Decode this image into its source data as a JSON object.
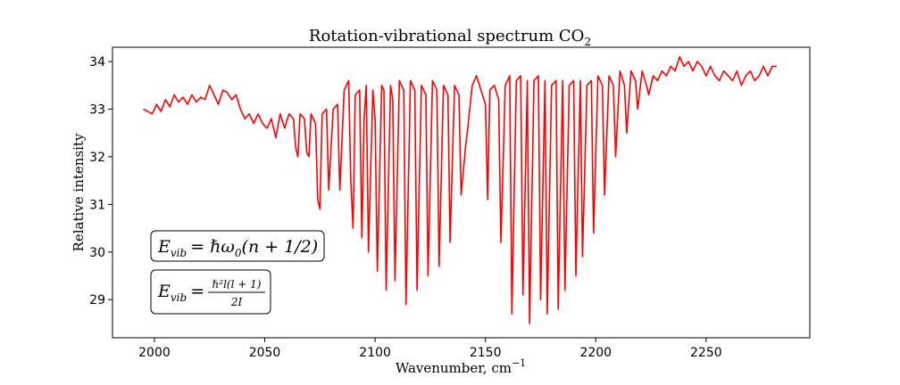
{
  "chart_data": {
    "type": "line",
    "title": "Rotation-vibrational spectrum CO",
    "title_sub": "2",
    "xlabel": "Wavenumber, cm",
    "xlabel_sup": "−1",
    "ylabel": "Relative intensity",
    "xlim": [
      1981,
      2297
    ],
    "ylim": [
      28.2,
      34.3
    ],
    "xticks": [
      2000,
      2050,
      2100,
      2150,
      2200,
      2250
    ],
    "yticks": [
      29,
      30,
      31,
      32,
      33,
      34
    ],
    "grid": false,
    "colors": {
      "line": "#ff0000"
    },
    "series": [
      {
        "points": [
          [
            1995,
            33.0
          ],
          [
            1997,
            32.95
          ],
          [
            1999,
            32.9
          ],
          [
            2001,
            33.1
          ],
          [
            2003,
            32.95
          ],
          [
            2005,
            33.2
          ],
          [
            2007,
            33.05
          ],
          [
            2009,
            33.3
          ],
          [
            2011,
            33.15
          ],
          [
            2013,
            33.25
          ],
          [
            2015,
            33.1
          ],
          [
            2017,
            33.3
          ],
          [
            2019,
            33.15
          ],
          [
            2021,
            33.25
          ],
          [
            2023,
            33.2
          ],
          [
            2025,
            33.5
          ],
          [
            2027,
            33.3
          ],
          [
            2029,
            33.1
          ],
          [
            2031,
            33.4
          ],
          [
            2033,
            33.35
          ],
          [
            2035,
            33.2
          ],
          [
            2037,
            33.3
          ],
          [
            2039,
            33.0
          ],
          [
            2041,
            32.8
          ],
          [
            2043,
            32.9
          ],
          [
            2045,
            32.7
          ],
          [
            2047,
            32.9
          ],
          [
            2049,
            32.7
          ],
          [
            2051,
            32.6
          ],
          [
            2053,
            32.8
          ],
          [
            2055,
            32.4
          ],
          [
            2057,
            32.9
          ],
          [
            2059,
            32.6
          ],
          [
            2061,
            32.9
          ],
          [
            2063,
            32.8
          ],
          [
            2064,
            32.2
          ],
          [
            2065,
            32.0
          ],
          [
            2066,
            32.9
          ],
          [
            2068,
            32.8
          ],
          [
            2069,
            32.1
          ],
          [
            2070,
            32.0
          ],
          [
            2071,
            32.9
          ],
          [
            2073,
            32.7
          ],
          [
            2074,
            31.1
          ],
          [
            2075,
            30.9
          ],
          [
            2076,
            32.9
          ],
          [
            2078,
            33.0
          ],
          [
            2079,
            31.3
          ],
          [
            2081,
            33.0
          ],
          [
            2083,
            33.1
          ],
          [
            2084,
            31.3
          ],
          [
            2086,
            33.4
          ],
          [
            2088,
            33.6
          ],
          [
            2089,
            31.5
          ],
          [
            2090,
            30.5
          ],
          [
            2091,
            33.3
          ],
          [
            2093,
            33.4
          ],
          [
            2094,
            30.3
          ],
          [
            2095,
            32.8
          ],
          [
            2096,
            33.5
          ],
          [
            2097,
            30.0
          ],
          [
            2099,
            33.4
          ],
          [
            2100,
            32.8
          ],
          [
            2101,
            29.6
          ],
          [
            2103,
            33.5
          ],
          [
            2104,
            33.4
          ],
          [
            2105,
            29.2
          ],
          [
            2107,
            33.5
          ],
          [
            2108,
            33.2
          ],
          [
            2109,
            29.4
          ],
          [
            2111,
            33.6
          ],
          [
            2113,
            33.4
          ],
          [
            2114,
            28.9
          ],
          [
            2116,
            33.6
          ],
          [
            2118,
            33.4
          ],
          [
            2119,
            29.2
          ],
          [
            2121,
            33.5
          ],
          [
            2123,
            33.3
          ],
          [
            2124,
            29.5
          ],
          [
            2126,
            33.6
          ],
          [
            2128,
            33.4
          ],
          [
            2129,
            29.7
          ],
          [
            2131,
            33.5
          ],
          [
            2133,
            33.3
          ],
          [
            2134,
            30.2
          ],
          [
            2136,
            33.5
          ],
          [
            2138,
            33.3
          ],
          [
            2139,
            31.2
          ],
          [
            2141,
            32.2
          ],
          [
            2142,
            32.6
          ],
          [
            2144,
            33.5
          ],
          [
            2146,
            33.7
          ],
          [
            2148,
            33.4
          ],
          [
            2150,
            33.1
          ],
          [
            2151,
            31.1
          ],
          [
            2152,
            33.4
          ],
          [
            2154,
            33.5
          ],
          [
            2156,
            33.2
          ],
          [
            2157,
            30.2
          ],
          [
            2159,
            33.5
          ],
          [
            2161,
            33.7
          ],
          [
            2162,
            28.7
          ],
          [
            2164,
            33.6
          ],
          [
            2166,
            33.7
          ],
          [
            2167,
            29.1
          ],
          [
            2169,
            33.6
          ],
          [
            2170,
            28.5
          ],
          [
            2172,
            33.6
          ],
          [
            2174,
            33.7
          ],
          [
            2175,
            29.0
          ],
          [
            2177,
            33.6
          ],
          [
            2178,
            28.7
          ],
          [
            2180,
            33.5
          ],
          [
            2182,
            33.6
          ],
          [
            2183,
            28.8
          ],
          [
            2185,
            33.6
          ],
          [
            2186,
            29.2
          ],
          [
            2188,
            33.5
          ],
          [
            2190,
            33.6
          ],
          [
            2191,
            29.5
          ],
          [
            2193,
            33.6
          ],
          [
            2194,
            29.9
          ],
          [
            2196,
            33.5
          ],
          [
            2198,
            33.6
          ],
          [
            2199,
            30.4
          ],
          [
            2201,
            33.7
          ],
          [
            2203,
            33.5
          ],
          [
            2204,
            31.2
          ],
          [
            2206,
            33.7
          ],
          [
            2208,
            33.5
          ],
          [
            2209,
            32.0
          ],
          [
            2211,
            33.8
          ],
          [
            2213,
            33.5
          ],
          [
            2214,
            32.5
          ],
          [
            2216,
            33.8
          ],
          [
            2218,
            33.6
          ],
          [
            2219,
            33.0
          ],
          [
            2221,
            33.8
          ],
          [
            2223,
            33.5
          ],
          [
            2224,
            33.3
          ],
          [
            2226,
            33.7
          ],
          [
            2228,
            33.6
          ],
          [
            2230,
            33.8
          ],
          [
            2232,
            33.7
          ],
          [
            2234,
            33.9
          ],
          [
            2236,
            33.8
          ],
          [
            2238,
            34.1
          ],
          [
            2240,
            33.9
          ],
          [
            2242,
            34.0
          ],
          [
            2244,
            33.8
          ],
          [
            2246,
            34.0
          ],
          [
            2248,
            33.9
          ],
          [
            2250,
            33.7
          ],
          [
            2252,
            33.9
          ],
          [
            2254,
            33.7
          ],
          [
            2256,
            33.6
          ],
          [
            2258,
            33.8
          ],
          [
            2260,
            33.7
          ],
          [
            2262,
            33.6
          ],
          [
            2264,
            33.8
          ],
          [
            2266,
            33.5
          ],
          [
            2268,
            33.7
          ],
          [
            2270,
            33.8
          ],
          [
            2272,
            33.6
          ],
          [
            2274,
            33.7
          ],
          [
            2276,
            33.9
          ],
          [
            2278,
            33.7
          ],
          [
            2280,
            33.9
          ],
          [
            2282,
            33.9
          ]
        ]
      }
    ],
    "annotations": [
      {
        "id": "energy-vib"
      },
      {
        "id": "energy-rot"
      }
    ]
  },
  "annotation_text": {
    "eq1": {
      "lhs_E": "E",
      "lhs_sub": "vib",
      "rhs": "= ℏω",
      "rhs_sub": "0",
      "rhs_tail": "(n + 1/2)"
    },
    "eq2": {
      "lhs_E": "E",
      "lhs_sub": "vib",
      "eq": "=",
      "num": "ℏ²l(l + 1)",
      "den": "2I"
    }
  }
}
